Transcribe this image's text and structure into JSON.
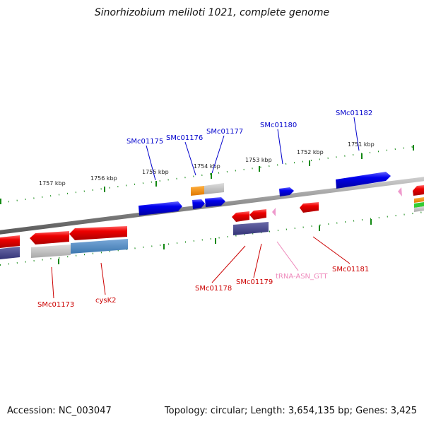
{
  "title": "Sinorhizobium meliloti 1021, complete genome",
  "footer": {
    "accession": "Accession: NC_003047",
    "stats": "Topology: circular; Length: 3,654,135 bp; Genes: 3,425"
  },
  "colors": {
    "forward_label": "#0000cc",
    "reverse_label": "#cc0000",
    "trna_label": "#ee88bb",
    "tick": "#118811",
    "backbone": "#888888"
  },
  "scale_ticks": [
    "1757 kbp",
    "1756 kbp",
    "1755 kbp",
    "1754 kbp",
    "1753 kbp",
    "1752 kbp",
    "1751 kbp"
  ],
  "gene_labels": {
    "forward": [
      "SMc01175",
      "SMc01176",
      "SMc01177",
      "SMc01180",
      "SMc01182"
    ],
    "reverse": [
      "SMc01173",
      "cysK2",
      "SMc01178",
      "SMc01179",
      "tRNA-ASN_GTT",
      "SMc01181"
    ]
  }
}
